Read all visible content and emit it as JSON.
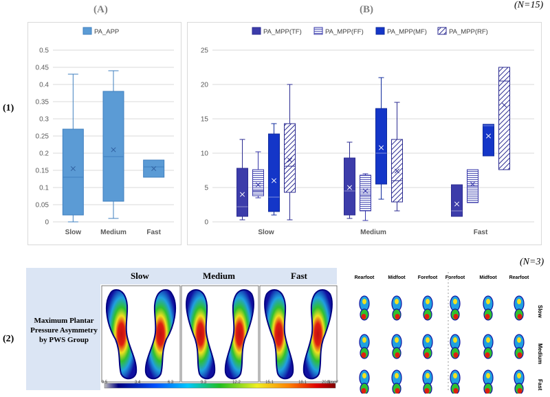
{
  "row_labels": {
    "row1": "(1)",
    "row2": "(2)"
  },
  "sample_size": {
    "top": "(N=15)",
    "bottom": "(N=3)"
  },
  "chart_data": [
    {
      "type": "boxplot",
      "panel_label": "(A)",
      "categories": [
        "Slow",
        "Medium",
        "Fast"
      ],
      "ylim": [
        0,
        0.5
      ],
      "y_ticks": [
        "0",
        "0.05",
        "0.1",
        "0.15",
        "0.2",
        "0.25",
        "0.3",
        "0.35",
        "0.4",
        "0.45",
        "0.5"
      ],
      "legend_position": "top",
      "series": [
        {
          "name": "PA_APP",
          "color": "#5b9bd5",
          "stroke": "#3f7fbf",
          "fill": "solid",
          "boxes": [
            {
              "min": 0.0,
              "q1": 0.02,
              "median": 0.13,
              "q3": 0.27,
              "max": 0.43,
              "mean": 0.155
            },
            {
              "min": 0.01,
              "q1": 0.06,
              "median": 0.19,
              "q3": 0.38,
              "max": 0.44,
              "mean": 0.21
            },
            {
              "min": 0.13,
              "q1": 0.13,
              "median": 0.16,
              "q3": 0.18,
              "max": 0.18,
              "mean": 0.155
            }
          ]
        }
      ]
    },
    {
      "type": "boxplot",
      "panel_label": "(B)",
      "categories": [
        "Slow",
        "Medium",
        "Fast"
      ],
      "ylim": [
        0,
        25
      ],
      "y_ticks": [
        "0",
        "5",
        "10",
        "15",
        "20",
        "25"
      ],
      "legend_position": "top",
      "series": [
        {
          "name": "PA_MPP(TF)",
          "color": "#3c3caa",
          "stroke": "#2a2a90",
          "fill": "solid",
          "boxes": [
            {
              "min": 0.3,
              "q1": 0.8,
              "median": 2.2,
              "q3": 7.8,
              "max": 12.0,
              "mean": 4.0
            },
            {
              "min": 0.5,
              "q1": 1.0,
              "median": 4.5,
              "q3": 9.3,
              "max": 11.6,
              "mean": 5.0
            },
            {
              "min": 0.8,
              "q1": 0.8,
              "median": 1.6,
              "q3": 5.4,
              "max": 5.4,
              "mean": 2.6
            }
          ]
        },
        {
          "name": "PA_MPP(FF)",
          "color": "#e8ecf8",
          "stroke": "#3535a8",
          "fill": "hlines",
          "boxes": [
            {
              "min": 3.5,
              "q1": 3.8,
              "median": 4.5,
              "q3": 7.6,
              "max": 10.2,
              "mean": 5.4
            },
            {
              "min": 0.2,
              "q1": 1.6,
              "median": 3.8,
              "q3": 6.8,
              "max": 7.0,
              "mean": 4.5
            },
            {
              "min": 2.8,
              "q1": 2.8,
              "median": 5.2,
              "q3": 7.6,
              "max": 7.6,
              "mean": 5.5
            }
          ]
        },
        {
          "name": "PA_MPP(MF)",
          "color": "#1436c8",
          "stroke": "#0f2a9c",
          "fill": "solid",
          "boxes": [
            {
              "min": 1.0,
              "q1": 1.5,
              "median": 3.6,
              "q3": 12.8,
              "max": 14.3,
              "mean": 6.0
            },
            {
              "min": 3.3,
              "q1": 5.5,
              "median": 10.0,
              "q3": 16.5,
              "max": 21.0,
              "mean": 10.8
            },
            {
              "min": 9.6,
              "q1": 9.6,
              "median": 14.0,
              "q3": 14.2,
              "max": 14.2,
              "mean": 12.5
            }
          ]
        },
        {
          "name": "PA_MPP(RF)",
          "color": "#ffffff",
          "stroke": "#2a2a90",
          "fill": "diag",
          "boxes": [
            {
              "min": 0.3,
              "q1": 4.3,
              "median": 8.1,
              "q3": 14.3,
              "max": 20.0,
              "mean": 9.0
            },
            {
              "min": 1.6,
              "q1": 2.9,
              "median": 6.0,
              "q3": 12.0,
              "max": 17.4,
              "mean": 7.4
            },
            {
              "min": 7.6,
              "q1": 7.6,
              "median": 20.5,
              "q3": 22.5,
              "max": 22.5,
              "mean": 17.0
            }
          ]
        }
      ]
    }
  ],
  "heatmap": {
    "panel_title": "Maximum Plantar Pressure Asymmetry by PWS Group",
    "groups": [
      "Slow",
      "Medium",
      "Fast"
    ],
    "colorbar_ticks": [
      "0.5",
      "3.4",
      "6.3",
      "9.3",
      "12.2",
      "15.1",
      "18.1",
      "20.0"
    ],
    "colorbar_unit": "N/cm²"
  },
  "foot_grid": {
    "column_labels": [
      "Rearfoot",
      "Midfoot",
      "Forefoot",
      "Forefoot",
      "Midfoot",
      "Rearfoot"
    ],
    "row_labels": [
      "Slow",
      "Medium",
      "Fast"
    ]
  }
}
